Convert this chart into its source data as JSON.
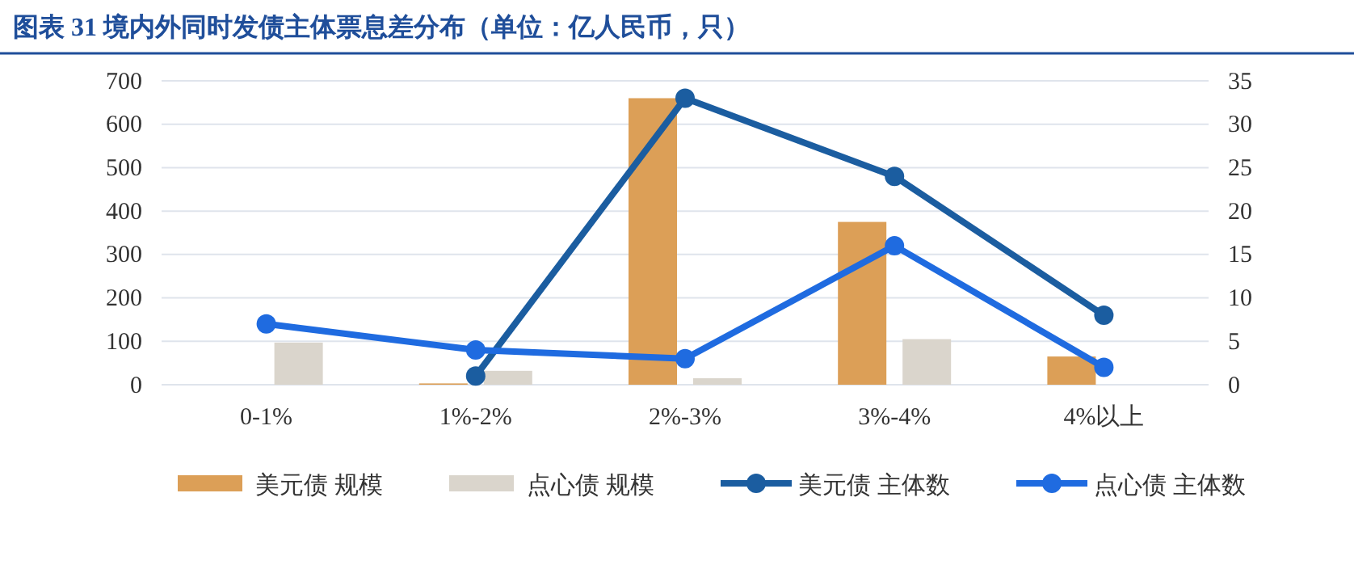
{
  "chart_data": {
    "type": "bar",
    "title": "图表 31 境内外同时发债主体票息差分布（单位：亿人民币，只）",
    "categories": [
      "0-1%",
      "1%-2%",
      "2%-3%",
      "3%-4%",
      "4%以上"
    ],
    "series": [
      {
        "name": "美元债 规模",
        "color": "#dc9f57",
        "values": [
          0,
          3,
          660,
          375,
          65
        ]
      },
      {
        "name": "点心债 规模",
        "color": "#dad5cc",
        "values": [
          97,
          32,
          15,
          105,
          null
        ]
      },
      {
        "name": "美元债 主体数",
        "type": "line",
        "axis": "y2",
        "color": "#1b5da0",
        "values": [
          null,
          1,
          33,
          24,
          8
        ]
      },
      {
        "name": "点心债 主体数",
        "type": "line",
        "axis": "y2",
        "color": "#1f6be0",
        "values": [
          7,
          4,
          3,
          16,
          2
        ]
      }
    ],
    "ylim": [
      0,
      700
    ],
    "yticks": [
      0,
      100,
      200,
      300,
      400,
      500,
      600,
      700
    ],
    "y2lim": [
      0,
      35
    ],
    "y2ticks": [
      0,
      5,
      10,
      15,
      20,
      25,
      30,
      35
    ],
    "grid": "y",
    "legend": "bottom",
    "marker": "circle"
  }
}
